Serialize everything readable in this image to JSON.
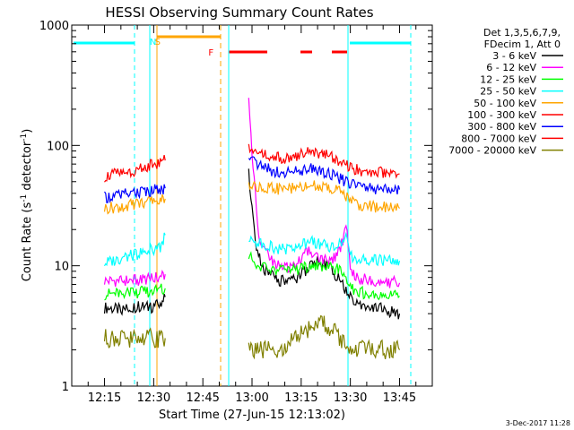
{
  "chart_data": {
    "type": "line",
    "title": "HESSI Observing Summary Count Rates",
    "xlabel": "Start Time (27-Jun-15 12:13:02)",
    "ylabel_main": "Count Rate (s",
    "ylabel_sup1": "-1",
    "ylabel_mid": " detector",
    "ylabel_sup2": "-1",
    "ylabel_end": ")",
    "y_scale": "log",
    "ylim": [
      1,
      1000
    ],
    "xlim_minutes": [
      725,
      835
    ],
    "x_ticks": [
      {
        "label": "12:15",
        "minutes": 735
      },
      {
        "label": "12:30",
        "minutes": 750
      },
      {
        "label": "12:45",
        "minutes": 765
      },
      {
        "label": "13:00",
        "minutes": 780
      },
      {
        "label": "13:15",
        "minutes": 795
      },
      {
        "label": "13:30",
        "minutes": 810
      },
      {
        "label": "13:45",
        "minutes": 825
      }
    ],
    "y_ticks": [
      {
        "label": "1",
        "value": 1
      },
      {
        "label": "10",
        "value": 10
      },
      {
        "label": "100",
        "value": 100
      },
      {
        "label": "1000",
        "value": 1000
      }
    ],
    "legend": {
      "placement": "right",
      "header": [
        "Det 1,3,5,6,7,9,",
        "FDecim 1, Att 0"
      ]
    },
    "series": [
      {
        "name": "3 - 6 keV",
        "color": "#000000",
        "x": [
          735,
          740,
          745,
          749,
          752,
          753.5,
          779,
          781,
          784,
          788,
          793,
          796,
          800,
          804,
          807,
          810,
          813,
          818,
          825
        ],
        "y": [
          4.5,
          4.3,
          4.6,
          4.5,
          4.8,
          5.5,
          60,
          15,
          9,
          7.5,
          7.5,
          9,
          11,
          9.5,
          7.5,
          5.5,
          4.8,
          4.5,
          4.0
        ]
      },
      {
        "name": "6 - 12 keV",
        "color": "#ff00ff",
        "x": [
          735,
          740,
          745,
          749,
          752,
          753.5,
          779,
          780,
          782,
          786,
          790,
          794,
          797,
          800,
          804,
          807,
          809,
          810,
          813,
          818,
          825
        ],
        "y": [
          7.5,
          7.5,
          7.6,
          7.8,
          8.0,
          8.5,
          250,
          90,
          18,
          11,
          9.5,
          10.5,
          13.5,
          12,
          10.5,
          14,
          22,
          8.5,
          7.8,
          7.5,
          7.2
        ]
      },
      {
        "name": "12 - 25 keV",
        "color": "#00ff00",
        "x": [
          735,
          740,
          745,
          749,
          752,
          753.5,
          779,
          782,
          786,
          790,
          794,
          797,
          800,
          804,
          807,
          810,
          813,
          818,
          825
        ],
        "y": [
          5.8,
          5.9,
          6.0,
          6.1,
          6.3,
          6.5,
          12,
          10,
          9.2,
          9.0,
          9.3,
          9.8,
          10,
          9.5,
          9.2,
          6.5,
          6.0,
          5.8,
          5.6
        ]
      },
      {
        "name": "25 - 50 keV",
        "color": "#00ffff",
        "x": [
          735,
          740,
          745,
          749,
          752,
          753.5,
          779,
          782,
          786,
          790,
          794,
          797,
          800,
          804,
          807,
          809,
          810,
          813,
          818,
          825
        ],
        "y": [
          10.5,
          11.5,
          12.5,
          13.5,
          14.5,
          18,
          16,
          15.5,
          14.5,
          13.5,
          14,
          16,
          15.5,
          14.5,
          15,
          18,
          12,
          11.5,
          11.2,
          11
        ]
      },
      {
        "name": "50 - 100 keV",
        "color": "#ffa500",
        "x": [
          735,
          740,
          745,
          749,
          752,
          753.5,
          779,
          782,
          786,
          790,
          794,
          797,
          800,
          804,
          807,
          810,
          813,
          818,
          825
        ],
        "y": [
          30,
          31,
          33,
          34,
          35,
          36,
          48,
          46,
          44,
          43,
          44,
          46,
          46,
          44,
          42,
          34,
          32,
          31,
          30
        ]
      },
      {
        "name": "100 - 300 keV",
        "color": "#ff0000",
        "x": [
          735,
          740,
          745,
          749,
          752,
          753.5,
          779,
          782,
          786,
          790,
          794,
          797,
          800,
          804,
          807,
          810,
          813,
          818,
          825
        ],
        "y": [
          55,
          59,
          63,
          68,
          72,
          75,
          92,
          88,
          82,
          78,
          83,
          89,
          87,
          80,
          74,
          66,
          62,
          60,
          58
        ]
      },
      {
        "name": "300 - 800 keV",
        "color": "#0000ff",
        "x": [
          735,
          740,
          745,
          749,
          752,
          753.5,
          779,
          782,
          786,
          790,
          794,
          797,
          800,
          804,
          807,
          810,
          813,
          818,
          825
        ],
        "y": [
          37,
          39,
          41,
          42,
          43,
          44,
          75,
          68,
          62,
          59,
          61,
          64,
          63,
          58,
          53,
          47,
          45,
          44,
          43
        ]
      },
      {
        "name": "800 - 7000 keV",
        "color": "#ff0000",
        "x": [],
        "y": []
      },
      {
        "name": "7000 - 20000 keV",
        "color": "#808000",
        "x": [
          735,
          740,
          745,
          749,
          752,
          753.5,
          779,
          782,
          786,
          790,
          794,
          797,
          800,
          804,
          807,
          810,
          813,
          818,
          825
        ],
        "y": [
          2.5,
          2.5,
          2.5,
          2.5,
          2.5,
          2.5,
          2.0,
          2.0,
          2.0,
          2.1,
          2.6,
          3.0,
          3.5,
          3.0,
          2.5,
          2.0,
          2.0,
          2.0,
          2.0
        ]
      }
    ],
    "annotations": [
      {
        "text": "N",
        "minutes": 749.8,
        "color": "#00ffff"
      },
      {
        "text": "S",
        "minutes": 751.2,
        "color": "#ffa500"
      },
      {
        "text": "F",
        "minutes": 767.5,
        "color": "#ff0000"
      }
    ],
    "timestamp": "3-Dec-2017 11:28"
  }
}
